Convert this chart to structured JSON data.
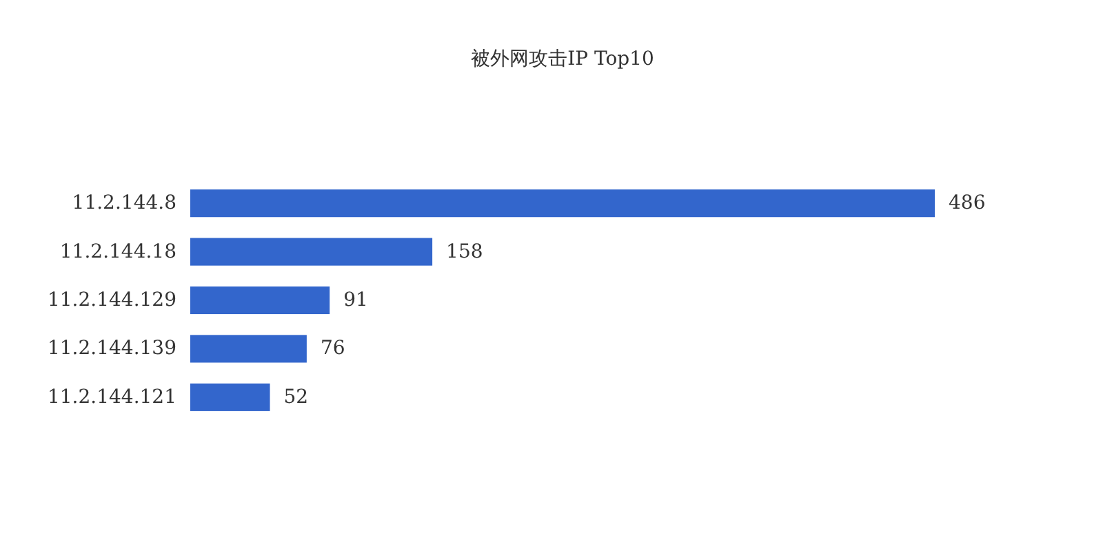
{
  "chart_data": {
    "type": "bar",
    "orientation": "horizontal",
    "title": "被外网攻击IP Top10",
    "categories": [
      "11.2.144.8",
      "11.2.144.18",
      "11.2.144.129",
      "11.2.144.139",
      "11.2.144.121"
    ],
    "values": [
      486,
      158,
      91,
      76,
      52
    ],
    "color": "#3366cc",
    "data_labels": true
  }
}
